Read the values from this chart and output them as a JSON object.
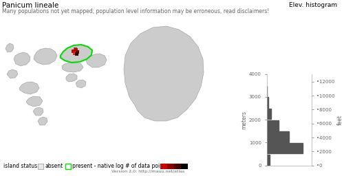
{
  "title": "Panicum lineale",
  "subtitle": "Many populations not yet mapped; population level information may be erroneous, read disclaimers!",
  "title_fontsize": 7.5,
  "subtitle_fontsize": 5.5,
  "elev_title": "Elev. histogram",
  "elev_title_fontsize": 6.5,
  "background_color": "#ffffff",
  "island_color": "#cccccc",
  "island_color2": "#c8c8c8",
  "island_edge_color": "#999999",
  "island_edge_width": 0.4,
  "present_native_edge_color": "#00dd00",
  "present_native_edge_width": 1.5,
  "histogram_color": "#555555",
  "histogram_bins_heights": [
    120,
    1500,
    950,
    500,
    180,
    60,
    10
  ],
  "histogram_bin_edges": [
    0,
    500,
    1000,
    1500,
    2000,
    2500,
    3000,
    3500
  ],
  "ylabel_meters": "meters",
  "ylabel_feet": "feet",
  "yticks_meters": [
    0,
    1000,
    2000,
    3000,
    4000
  ],
  "yticks_feet_vals": [
    0,
    2000,
    4000,
    6000,
    8000,
    10000,
    12000
  ],
  "yticks_feet_pos": [
    0,
    609.6,
    1219.2,
    1828.8,
    2438.4,
    3048.0,
    3657.6
  ],
  "legend_absent_color": "#e8e8e8",
  "legend_absent_edge": "#aaaaaa",
  "colorbar_colors": [
    "#cc0000",
    "#880000",
    "#440000",
    "#000000"
  ],
  "version_text": "Version 2.0: http://mauu.net/atlas",
  "version_fontsize": 4.5,
  "text_color": "#666666",
  "axis_fontsize": 5.5,
  "tick_fontsize": 5
}
